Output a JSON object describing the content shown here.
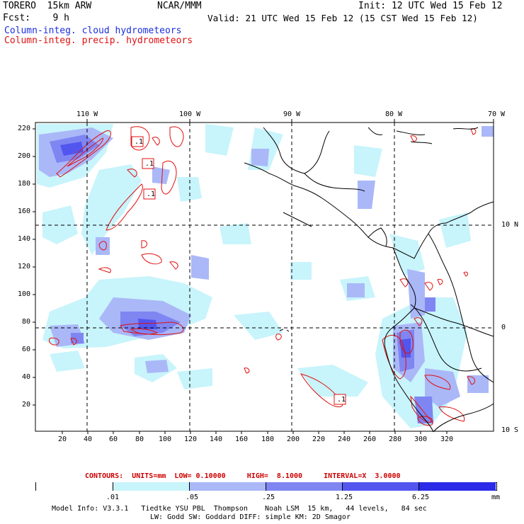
{
  "header": {
    "model": "TORERO  15km ARW",
    "org": "NCAR/MMM",
    "init": "Init: 12 UTC Wed 15 Feb 12",
    "fcst": "Fcst:    9 h",
    "valid": "Valid: 21 UTC Wed 15 Feb 12 (15 CST Wed 15 Feb 12)",
    "field1": "Column-integ. cloud hydrometeors",
    "field2": "Column-integ. precip. hydrometeors"
  },
  "colors": {
    "field1": "#1a2ee0",
    "field2": "#e01010",
    "shade": [
      "#ffffff",
      "#c8f4fb",
      "#aab8f8",
      "#7f86f2",
      "#5256ee",
      "#2a2ae8"
    ]
  },
  "map": {
    "lon_labels": [
      "110 W",
      "100 W",
      "90 W",
      "80 W",
      "70 W"
    ],
    "lat_labels": [
      "10 N",
      "0",
      "10 S"
    ],
    "y_ticks": [
      "220",
      "200",
      "180",
      "160",
      "140",
      "120",
      "100",
      "80",
      "60",
      "40",
      "20"
    ],
    "x_ticks": [
      "20",
      "40",
      "60",
      "80",
      "100",
      "120",
      "140",
      "160",
      "180",
      "200",
      "220",
      "240",
      "260",
      "280",
      "300",
      "320"
    ],
    "contour_labels": [
      ".1",
      ".1",
      ".1",
      ".1"
    ]
  },
  "contour_info": {
    "text": "CONTOURS:  UNITS=mm  LOW= 0.10000     HIGH=  8.1000     INTERVAL=X  3.0000"
  },
  "colorbar": {
    "labels": [
      ".01",
      ".05",
      ".25",
      "1.25",
      "6.25"
    ],
    "units": "mm"
  },
  "footer": {
    "line1": "Model Info: V3.3.1   Tiedtke YSU PBL  Thompson    Noah LSM  15 km,   44 levels,   84 sec",
    "line2": "LW: Godd SW: Goddard DIFF: simple KM: 2D Smagor"
  }
}
